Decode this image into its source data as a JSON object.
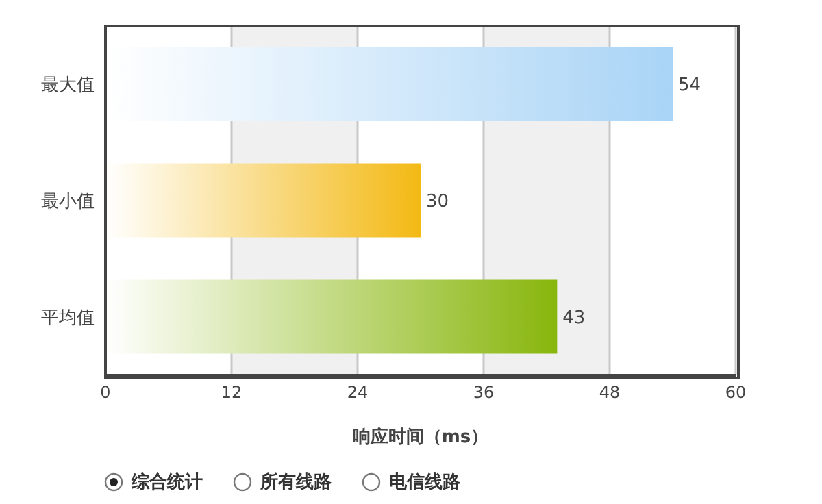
{
  "chart_data": {
    "type": "bar",
    "orientation": "horizontal",
    "categories": [
      "最大值",
      "最小值",
      "平均值"
    ],
    "values": [
      54,
      30,
      43
    ],
    "colors": [
      "#a9d4f6",
      "#f3b914",
      "#88b60c"
    ],
    "xlabel": "响应时间（ms）",
    "xlim": [
      0,
      60
    ],
    "xticks": [
      0,
      12,
      24,
      36,
      48,
      60
    ],
    "grid": "x",
    "data_labels": true,
    "annotations": [
      "综合统计",
      "所有线路",
      "电信线路"
    ]
  }
}
